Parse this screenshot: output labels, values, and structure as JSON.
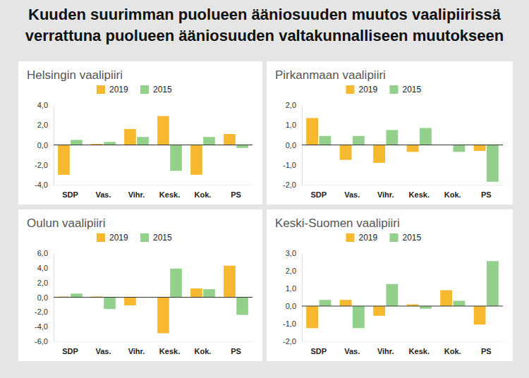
{
  "title": [
    "Kuuden suurimman puolueen ääniosuuden muutos vaalipiirissä",
    "verrattuna puolueen ääniosuuden valtakunnalliseen muutokseen"
  ],
  "chart_data": [
    {
      "type": "bar",
      "title": "Helsingin vaalipiiri",
      "categories": [
        "SDP",
        "Vas.",
        "Vihr.",
        "Kesk.",
        "Kok.",
        "PS"
      ],
      "series": [
        {
          "name": "2019",
          "color": "#f5b82e",
          "values": [
            -3.0,
            0.1,
            1.6,
            2.9,
            -3.0,
            1.1
          ]
        },
        {
          "name": "2015",
          "color": "#93d08b",
          "values": [
            0.5,
            0.3,
            0.8,
            -2.6,
            0.8,
            -0.3
          ]
        }
      ],
      "ylim": [
        -4,
        4
      ],
      "yticks": [
        {
          "value": 4,
          "label": "4,0"
        },
        {
          "value": 2,
          "label": "2,0"
        },
        {
          "value": 0,
          "label": "0,0"
        },
        {
          "value": -2,
          "label": "-2,0"
        },
        {
          "value": -4,
          "label": "-4,0"
        }
      ],
      "grid": false,
      "legend": "top"
    },
    {
      "type": "bar",
      "title": "Pirkanmaan vaalipiiri",
      "categories": [
        "SDP",
        "Vas.",
        "Vihr.",
        "Kesk.",
        "Kok.",
        "PS"
      ],
      "series": [
        {
          "name": "2019",
          "color": "#f5b82e",
          "values": [
            1.35,
            -0.75,
            -0.9,
            -0.35,
            0.0,
            -0.3
          ]
        },
        {
          "name": "2015",
          "color": "#93d08b",
          "values": [
            0.45,
            0.45,
            0.75,
            0.85,
            -0.35,
            -1.85
          ]
        }
      ],
      "ylim": [
        -2,
        2
      ],
      "yticks": [
        {
          "value": 2,
          "label": "2,0"
        },
        {
          "value": 1,
          "label": "1,0"
        },
        {
          "value": 0,
          "label": "0,0"
        },
        {
          "value": -1,
          "label": "-1,0"
        },
        {
          "value": -2,
          "label": "-2,0"
        }
      ],
      "grid": false,
      "legend": "top"
    },
    {
      "type": "bar",
      "title": "Oulun vaalipiiri",
      "categories": [
        "SDP",
        "Vas.",
        "Vihr.",
        "Kesk.",
        "Kok.",
        "PS"
      ],
      "series": [
        {
          "name": "2019",
          "color": "#f5b82e",
          "values": [
            0.1,
            0.1,
            -1.1,
            -4.9,
            1.2,
            4.3
          ]
        },
        {
          "name": "2015",
          "color": "#93d08b",
          "values": [
            0.5,
            -1.6,
            0.0,
            3.9,
            1.1,
            -2.4
          ]
        }
      ],
      "ylim": [
        -6,
        6
      ],
      "yticks": [
        {
          "value": 6,
          "label": "6,0"
        },
        {
          "value": 4,
          "label": "4,0"
        },
        {
          "value": 2,
          "label": "2,0"
        },
        {
          "value": 0,
          "label": "0,0"
        },
        {
          "value": -2,
          "label": "-2,0"
        },
        {
          "value": -4,
          "label": "-4,0"
        },
        {
          "value": -6,
          "label": "-6,0"
        }
      ],
      "grid": false,
      "legend": "top"
    },
    {
      "type": "bar",
      "title": "Keski-Suomen vaalipiiri",
      "categories": [
        "SDP",
        "Vas.",
        "Vihr.",
        "Kesk.",
        "Kok.",
        "PS"
      ],
      "series": [
        {
          "name": "2019",
          "color": "#f5b82e",
          "values": [
            -1.25,
            0.35,
            -0.55,
            0.1,
            0.9,
            -1.05
          ]
        },
        {
          "name": "2015",
          "color": "#93d08b",
          "values": [
            0.35,
            -1.25,
            1.25,
            -0.15,
            0.3,
            2.55
          ]
        }
      ],
      "ylim": [
        -2,
        3
      ],
      "yticks": [
        {
          "value": 3,
          "label": "3,0"
        },
        {
          "value": 2,
          "label": "2,0"
        },
        {
          "value": 1,
          "label": "1,0"
        },
        {
          "value": 0,
          "label": "0,0"
        },
        {
          "value": -1,
          "label": "-1,0"
        },
        {
          "value": -2,
          "label": "-2,0"
        }
      ],
      "grid": false,
      "legend": "top"
    }
  ]
}
